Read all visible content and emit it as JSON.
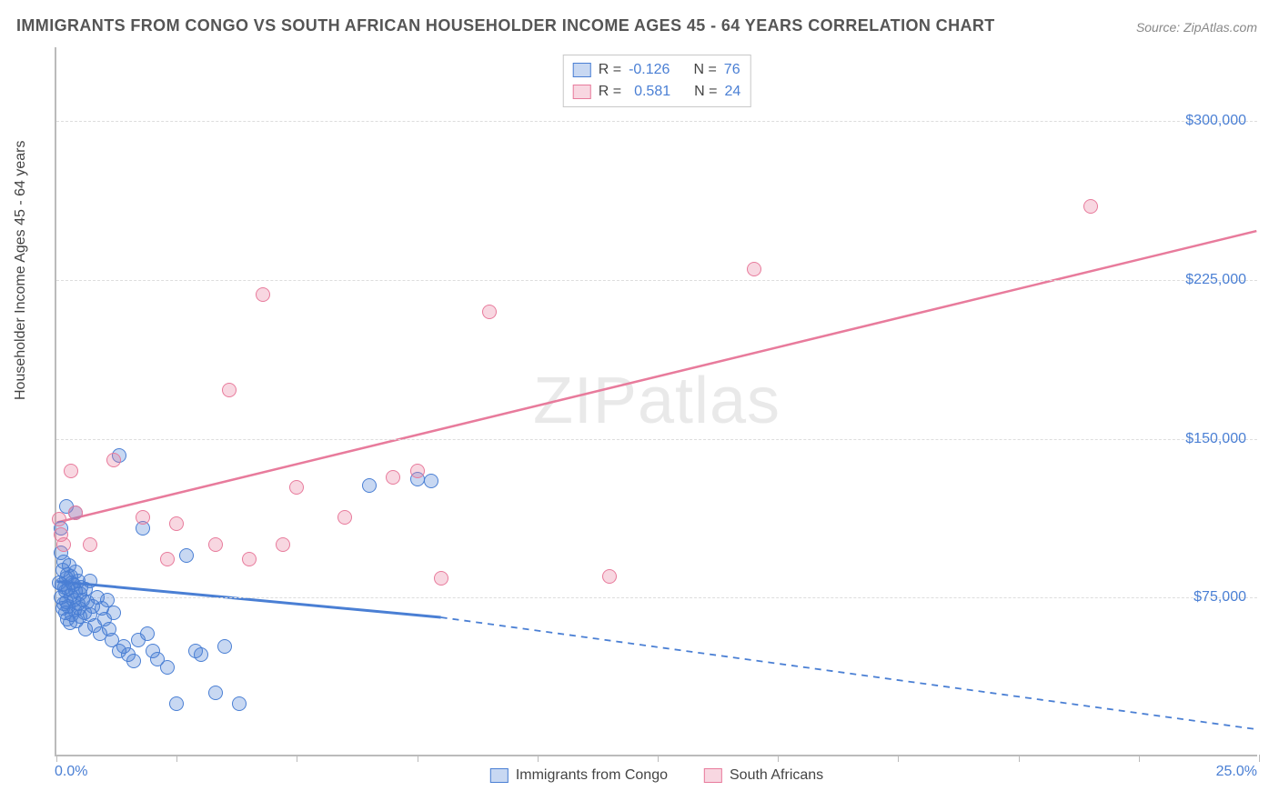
{
  "title": "IMMIGRANTS FROM CONGO VS SOUTH AFRICAN HOUSEHOLDER INCOME AGES 45 - 64 YEARS CORRELATION CHART",
  "source": "Source: ZipAtlas.com",
  "y_axis_label": "Householder Income Ages 45 - 64 years",
  "watermark_zip": "ZIP",
  "watermark_atlas": "atlas",
  "chart": {
    "type": "scatter",
    "xlim": [
      0,
      25
    ],
    "ylim": [
      0,
      335000
    ],
    "x_tick_positions": [
      0,
      2.5,
      5,
      7.5,
      10,
      12.5,
      15,
      17.5,
      20,
      22.5,
      25
    ],
    "x_tick_labels_shown": {
      "0": "0.0%",
      "25": "25.0%"
    },
    "y_gridlines": [
      75000,
      150000,
      225000,
      300000
    ],
    "y_tick_labels": {
      "75000": "$75,000",
      "150000": "$150,000",
      "225000": "$225,000",
      "300000": "$300,000"
    },
    "background_color": "#ffffff",
    "grid_color": "#dddddd",
    "axis_color": "#bbbbbb",
    "tick_label_color": "#4a7fd4",
    "title_color": "#555555",
    "title_fontsize": 18,
    "label_fontsize": 16,
    "marker_radius": 8,
    "marker_border_width": 1.5,
    "marker_fill_opacity": 0.3
  },
  "series": {
    "congo": {
      "label": "Immigrants from Congo",
      "color": "#4a7fd4",
      "fill": "rgba(74,127,212,0.3)",
      "R": "-0.126",
      "N": "76",
      "trendline": {
        "x1": 0,
        "y1": 82000,
        "x2_solid": 8,
        "y2_solid": 65000,
        "x2": 25,
        "y2": 12000,
        "solid_then_dashed": true,
        "width": 3
      },
      "points": [
        [
          0.05,
          82000
        ],
        [
          0.1,
          96000
        ],
        [
          0.1,
          108000
        ],
        [
          0.1,
          75000
        ],
        [
          0.12,
          81000
        ],
        [
          0.13,
          88000
        ],
        [
          0.13,
          70000
        ],
        [
          0.15,
          92000
        ],
        [
          0.15,
          72000
        ],
        [
          0.17,
          80000
        ],
        [
          0.18,
          68000
        ],
        [
          0.18,
          78000
        ],
        [
          0.2,
          118000
        ],
        [
          0.2,
          84000
        ],
        [
          0.2,
          73000
        ],
        [
          0.22,
          65000
        ],
        [
          0.22,
          86000
        ],
        [
          0.25,
          79000
        ],
        [
          0.25,
          71000
        ],
        [
          0.27,
          90000
        ],
        [
          0.28,
          63000
        ],
        [
          0.3,
          76000
        ],
        [
          0.3,
          85000
        ],
        [
          0.32,
          82000
        ],
        [
          0.32,
          67000
        ],
        [
          0.35,
          74000
        ],
        [
          0.35,
          81000
        ],
        [
          0.38,
          69000
        ],
        [
          0.4,
          78000
        ],
        [
          0.4,
          87000
        ],
        [
          0.42,
          64000
        ],
        [
          0.45,
          72000
        ],
        [
          0.45,
          83000
        ],
        [
          0.48,
          70000
        ],
        [
          0.5,
          77000
        ],
        [
          0.5,
          66000
        ],
        [
          0.52,
          80000
        ],
        [
          0.55,
          74000
        ],
        [
          0.58,
          68000
        ],
        [
          0.6,
          79000
        ],
        [
          0.6,
          60000
        ],
        [
          0.65,
          73000
        ],
        [
          0.7,
          67000
        ],
        [
          0.7,
          83000
        ],
        [
          0.75,
          71000
        ],
        [
          0.8,
          62000
        ],
        [
          0.85,
          75000
        ],
        [
          0.9,
          58000
        ],
        [
          0.95,
          70000
        ],
        [
          1.0,
          65000
        ],
        [
          1.05,
          74000
        ],
        [
          1.1,
          60000
        ],
        [
          1.15,
          55000
        ],
        [
          1.2,
          68000
        ],
        [
          1.3,
          50000
        ],
        [
          1.3,
          142000
        ],
        [
          1.4,
          52000
        ],
        [
          1.5,
          48000
        ],
        [
          1.6,
          45000
        ],
        [
          1.7,
          55000
        ],
        [
          1.8,
          108000
        ],
        [
          1.9,
          58000
        ],
        [
          2.0,
          50000
        ],
        [
          2.1,
          46000
        ],
        [
          2.3,
          42000
        ],
        [
          2.5,
          25000
        ],
        [
          2.7,
          95000
        ],
        [
          2.9,
          50000
        ],
        [
          3.0,
          48000
        ],
        [
          3.3,
          30000
        ],
        [
          3.5,
          52000
        ],
        [
          3.8,
          25000
        ],
        [
          6.5,
          128000
        ],
        [
          7.5,
          131000
        ],
        [
          7.8,
          130000
        ],
        [
          0.4,
          115000
        ]
      ]
    },
    "southafricans": {
      "label": "South Africans",
      "color": "#e87b9c",
      "fill": "rgba(232,123,156,0.3)",
      "R": "0.581",
      "N": "24",
      "trendline": {
        "x1": 0,
        "y1": 110000,
        "x2": 25,
        "y2": 248000,
        "solid_then_dashed": false,
        "width": 2.5
      },
      "points": [
        [
          0.05,
          112000
        ],
        [
          0.1,
          105000
        ],
        [
          0.15,
          100000
        ],
        [
          0.3,
          135000
        ],
        [
          0.4,
          115000
        ],
        [
          0.7,
          100000
        ],
        [
          1.2,
          140000
        ],
        [
          1.8,
          113000
        ],
        [
          2.3,
          93000
        ],
        [
          2.5,
          110000
        ],
        [
          3.3,
          100000
        ],
        [
          3.6,
          173000
        ],
        [
          4.0,
          93000
        ],
        [
          4.3,
          218000
        ],
        [
          4.7,
          100000
        ],
        [
          5.0,
          127000
        ],
        [
          6.0,
          113000
        ],
        [
          7.0,
          132000
        ],
        [
          7.5,
          135000
        ],
        [
          8.0,
          84000
        ],
        [
          9.0,
          210000
        ],
        [
          11.5,
          85000
        ],
        [
          14.5,
          230000
        ],
        [
          21.5,
          260000
        ]
      ]
    }
  },
  "legend_top": {
    "r_prefix": "R =",
    "n_prefix": "N ="
  },
  "legend_bottom": {
    "items": [
      "congo",
      "southafricans"
    ]
  }
}
